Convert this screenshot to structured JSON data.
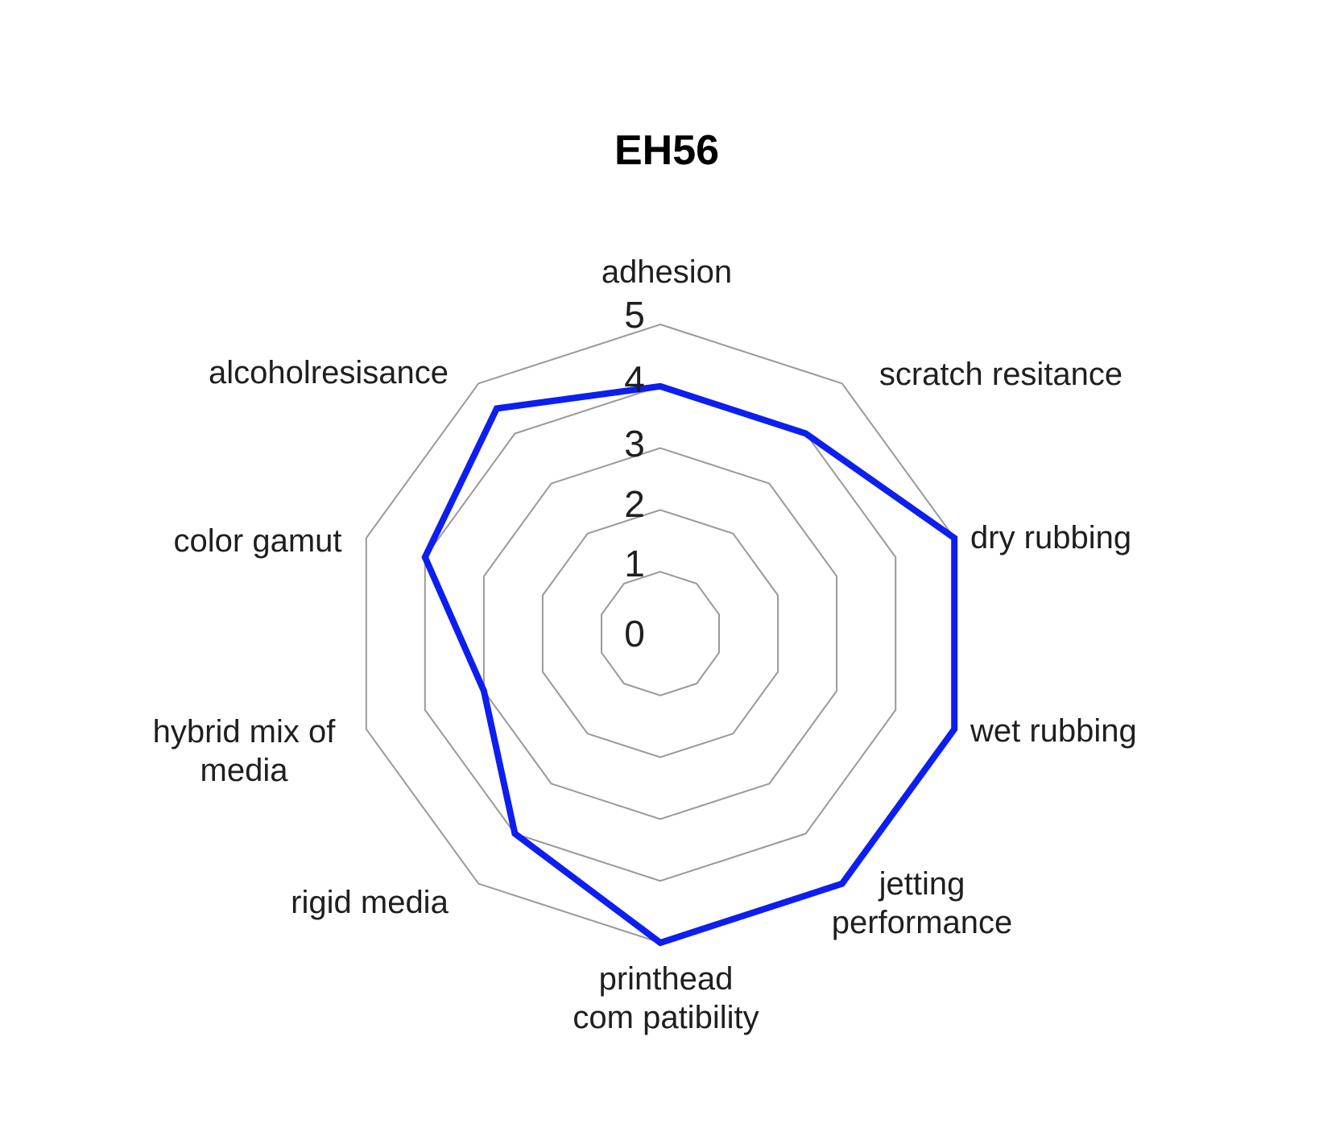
{
  "title": "EH56",
  "chart_data": {
    "type": "radar",
    "title": "EH56",
    "categories": [
      "adhesion",
      "scratch resitance",
      "dry rubbing",
      "wet rubbing",
      "jetting\nperformance",
      "printhead\ncom patibility",
      "rigid media",
      "hybrid mix of\nmedia",
      "color gamut",
      "alcoholresisance"
    ],
    "series": [
      {
        "name": "EH56",
        "values": [
          4,
          4,
          5,
          5,
          5,
          5,
          4,
          3,
          4,
          4.5
        ]
      }
    ],
    "radial_ticks": [
      "0",
      "1",
      "2",
      "3",
      "4",
      "5"
    ],
    "radial_range": [
      0,
      5
    ],
    "grid": true,
    "spokes": false,
    "legend_position": "none",
    "line_color": "#0d1ef0",
    "grid_color": "#999999",
    "text_color": "#1f1f1f",
    "title_color": "#000000",
    "background_color": "#ffffff"
  }
}
